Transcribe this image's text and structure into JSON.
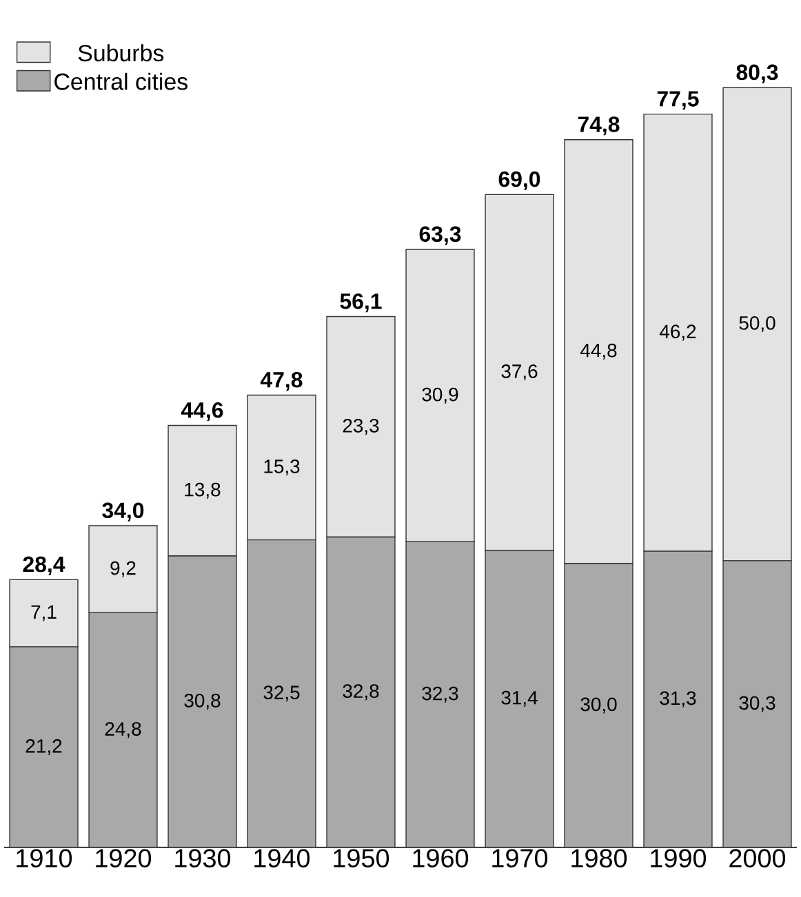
{
  "chart_data": {
    "type": "bar",
    "stacked": true,
    "legend": "top left",
    "tick_labels": "x",
    "categories": [
      "1910",
      "1920",
      "1930",
      "1940",
      "1950",
      "1960",
      "1970",
      "1980",
      "1990",
      "2000"
    ],
    "series": [
      {
        "name": "Central cities",
        "color": "#a9a9a9",
        "values": [
          21.2,
          24.8,
          30.8,
          32.5,
          32.8,
          32.3,
          31.4,
          30.0,
          31.3,
          30.3
        ],
        "value_labels": [
          "21,2",
          "24,8",
          "30,8",
          "32,5",
          "32,8",
          "32,3",
          "31,4",
          "30,0",
          "31,3",
          "30,3"
        ]
      },
      {
        "name": "Suburbs",
        "color": "#e3e3e3",
        "values": [
          7.1,
          9.2,
          13.8,
          15.3,
          23.3,
          30.9,
          37.6,
          44.8,
          46.2,
          50.0
        ],
        "value_labels": [
          "7,1",
          "9,2",
          "13,8",
          "15,3",
          "23,3",
          "30,9",
          "37,6",
          "44,8",
          "46,2",
          "50,0"
        ]
      }
    ],
    "totals": [
      "28,4",
      "34,0",
      "44,6",
      "47,8",
      "56,1",
      "63,3",
      "69,0",
      "74,8",
      "77,5",
      "80,3"
    ]
  }
}
